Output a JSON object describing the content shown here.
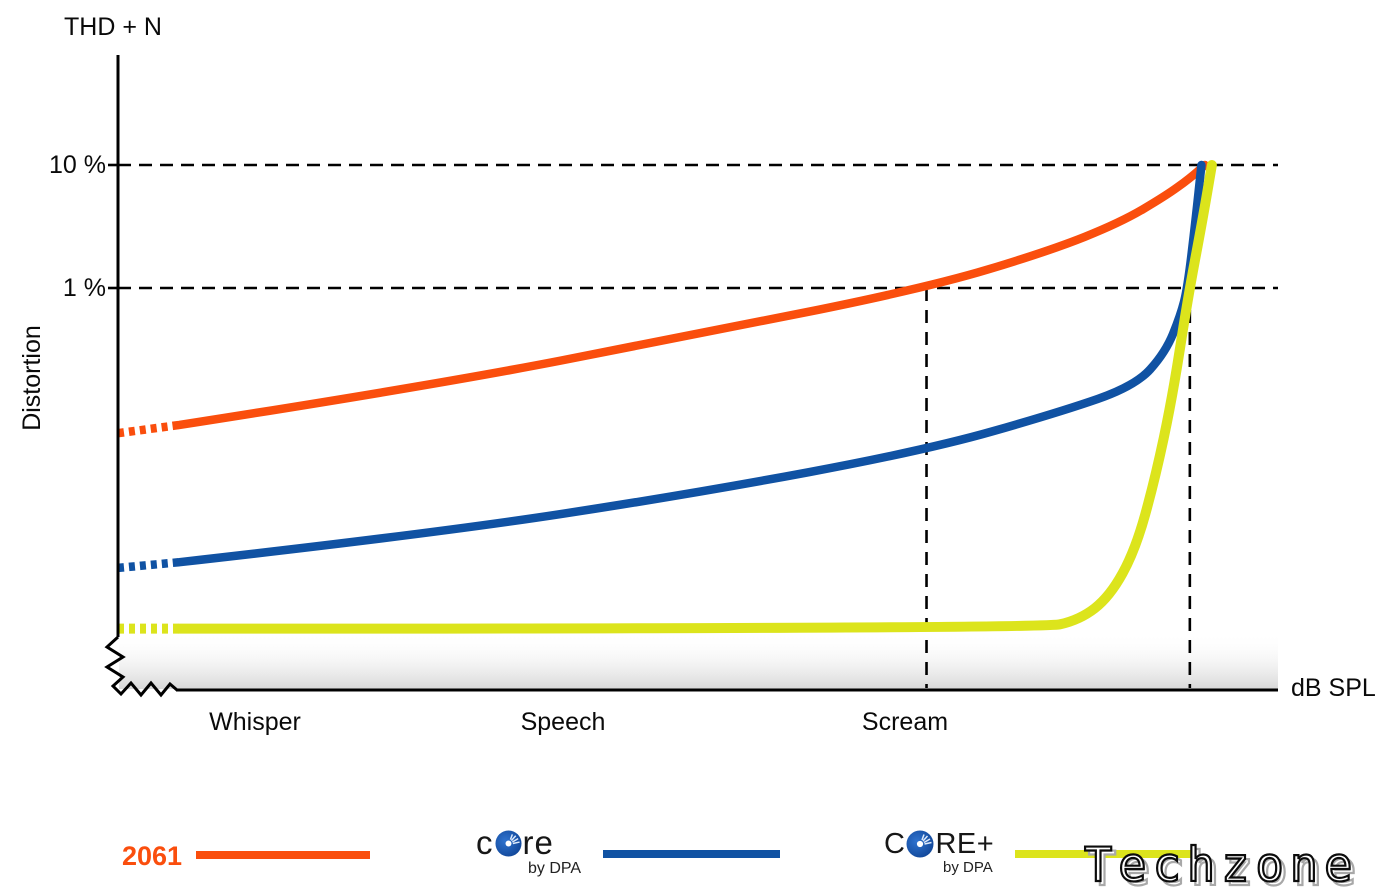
{
  "title": "THD + N",
  "axes": {
    "ylabel": "Distortion",
    "xlabel": "dB SPL",
    "ytick_10": "10 %",
    "ytick_1": "1 %",
    "x_categories": [
      "Whisper",
      "Speech",
      "Scream"
    ]
  },
  "legend": {
    "position": "bottom",
    "items": [
      {
        "label": "2061",
        "color": "#fa4e0d"
      },
      {
        "prefix": "c",
        "suffix": "re",
        "sub": "by DPA",
        "name": "CORE by DPA",
        "color": "#1052a3"
      },
      {
        "prefix": "C",
        "suffix": "RE+",
        "sub": "by DPA",
        "name": "CORE+ by DPA",
        "color": "#dce41c"
      }
    ]
  },
  "watermark": {
    "text": "Techzone"
  },
  "chart_data": {
    "type": "line",
    "title": "THD + N",
    "xlabel": "dB SPL",
    "ylabel": "Distortion (THD+N, %)",
    "y_scale": "log",
    "grid": "dashed guide lines only",
    "legend_position": "bottom",
    "axis_break": "zigzag break at plot origin on both axes",
    "x_axis": {
      "type": "relative SPL position 0-100 (no numeric ticks shown)",
      "range": [
        0,
        100
      ],
      "category_labels": [
        {
          "label": "Whisper",
          "x_rel": 11.8
        },
        {
          "label": "Speech",
          "x_rel": 38.4
        },
        {
          "label": "Scream",
          "x_rel": 67.8
        }
      ]
    },
    "y_gridlines_percent": [
      10,
      1
    ],
    "v_guides_x_rel": [
      69.7,
      92.4
    ],
    "series": [
      {
        "name": "2061",
        "color": "#fa4e0d",
        "dashed_lead_in": true,
        "x_rel": [
          0,
          5.3,
          26.9,
          49.3,
          69.7,
          80.3,
          86.4,
          90.3,
          92.4,
          93.7
        ],
        "thd_percent": [
          0.066,
          0.077,
          0.16,
          0.41,
          1.0,
          2.0,
          3.4,
          5.6,
          7.8,
          10
        ]
      },
      {
        "name": "CORE by DPA",
        "color": "#1052a3",
        "dashed_lead_in": true,
        "x_rel": [
          0,
          5.3,
          26.9,
          49.3,
          69.7,
          81.2,
          87.7,
          90.3,
          91.6,
          92.2,
          92.9,
          93.4
        ],
        "thd_percent": [
          0.0053,
          0.0059,
          0.01,
          0.021,
          0.048,
          0.098,
          0.16,
          0.3,
          0.6,
          1.0,
          3.6,
          10
        ]
      },
      {
        "name": "CORE+ by DPA",
        "color": "#dce41c",
        "dashed_lead_in": true,
        "x_rel": [
          0,
          5.3,
          79.5,
          82.9,
          85.5,
          87.7,
          89.4,
          90.9,
          92.2,
          93.5,
          94.3
        ],
        "thd_percent": [
          0.0017,
          0.0017,
          0.0017,
          0.002,
          0.0031,
          0.0074,
          0.028,
          0.13,
          0.8,
          3.6,
          10
        ]
      }
    ]
  }
}
